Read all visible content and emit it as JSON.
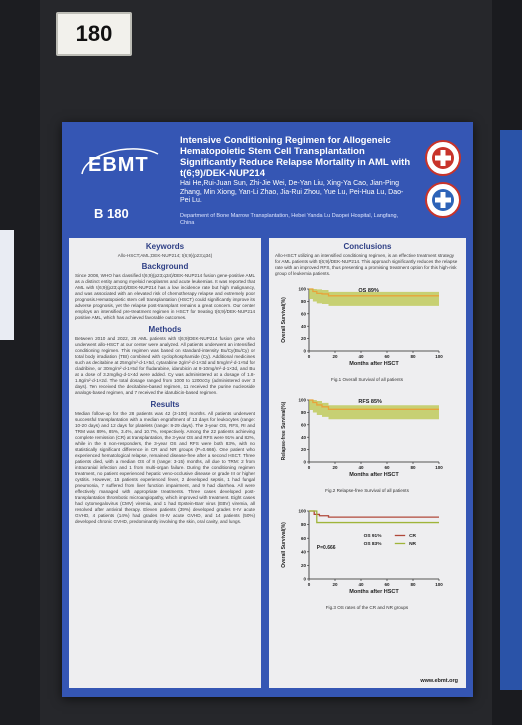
{
  "panel_number": "180",
  "poster": {
    "logo": "EBMT",
    "code": "B 180",
    "title": "Intensive Conditioning Regimen for Allogeneic Hematopoietic Stem Cell Transplantation Significantly Reduce Relapse Mortality in AML with t(6;9)/DEK-NUP214",
    "authors": "Hai He,Rui-Juan Sun, Zhi-Jie Wei, De-Yan Liu, Xing-Ya Cao, Jian-Ping Zhang, Min Xiong, Yan-Li Zhao, Jia-Rui Zhou, Yue Lu, Pei-Hua Lu, Dao-Pei Lu.",
    "affiliation": "Department of Bone Marrow Transplantation, Hebei Yanda Lu Daopei Hospital, Langfang, China",
    "website": "www.ebmt.org"
  },
  "left": {
    "keywords_heading": "Keywords",
    "keywords": "Allo-HSCT;AML;DEK-NUP214; t(6;9)(p23;q34)",
    "background_heading": "Background",
    "background": "Since 2008, WHO has classified t(6;9)(p23;q34)/DEK-NUP214 fusion gene-positive AML as a distinct entity among myeloid neoplasms and acute leukemias. It was reported that AML with t(6;9)(p23;q34)/DEK-NUP214 has a low incidence rate but high malignancy, and was associated with an elevated risk of chemotherapy relapse and extremely poor prognosis.Hematopoietic stem cell transplantation (HSCT) could significantly improve its adverse prognosis, yet the relapse post-transplant remains a great concern. Our center employs an intensified pre-treatment regimen in HSCT for treating t(6;9)/DEK-NUP214 positive AML, which has achieved favorable outcomes.",
    "methods_heading": "Methods",
    "methods": "Between 2010 and 2022, 28 AML patients with t(6;9)DEK-NUP214 fusion gene who underwent allo-HSCT at our center were analyzed. All patients underwent an intensified conditioning regimen. This regimen was based on standard-intensity Bu/Cy(Bu/Cy) or total body irradiation (TBI) combined with cyclophosphamide (Cy). Additional medicines such as decitabine at 25mg/m²·d-1×5d, cytarabine 2g/m²·d-1×3d and 5mg/m²·d-1×5d for cladribine, or 30mg/m²·d-1×5d for fludarabine, idarubicin at 8-10mg/m²·d-1×3d, and Bu at a dose of 3.2mg/kg·d-1×4d were added. Cy was administered at a dosage of 1.8-1.8g/m²·d-1×2d. The total dosage ranged from 1000 to 1200cGy (administered over 3 days). Ten received the decitabine-based regimen, 11 received the purine nucleoside analogs-based regimen, and 7 received the idarubicin-based regimen.",
    "results_heading": "Results",
    "results": "Median follow-up for the 28 patients was 42 (3-100) months. All patients underwent successful transplantation with a median engraftment of 13 days for leukocytes (range: 10-20 days) and 12 days for platelets (range: 8-29 days). The 3-year OS, RFS, RI and TRM was 89%, 85%, 3.4%, and 10.7%, respectively. Among the 22 patients achieving complete remission (CR) at transplantation, the 3-year OS and RFS were 91% and 82%, while in the 6 non-responders, the 3-year OS and RFS were both 83%, with no statistically significant difference in CR and NR groups (P=0.666). One patient who experienced hematological relapse, remained disease-free after a second HSCT. Three patients died, with a median OS of 8 (range: 3-15) months, all due to TRM: 2 from intracranial infection and 1 from multi-organ failure. During the conditioning regimen treatment, no patient experienced hepatic veno-occlusive disease or grade III or higher cystitis. However, 15 patients experienced fever, 2 developed sepsis, 1 had fungal pneumonia, 7 suffered from liver function impairment, and 9 had diarrhea. All were effectively managed with appropriate treatments. Three cases developed post-transplantation thrombotic microangiopathy, which improved with treatment. Eight cases had cytomegalovirus (CMV) viremia, and 1 had Epstein-Barr virus (EBV) viremia, all resolved after antiviral therapy. Eleven patients (39%) developed grades II-IV acute GVHD, 4 patients (14%) had grades III-IV acute GVHD, and 14 patients (50%) developed chronic GVHD, predominantly involving the skin, oral cavity, and lungs."
  },
  "right": {
    "conclusions_heading": "Conclusions",
    "conclusions": "Allo-HSCT utilizing an intensified conditioning regimen, is an effective treatment strategy for AML patients with t(6;9)/DEK-NUP214. This approach significantly reduces the relapse rate with an improved RFS, thus presenting a promising treatment option for this high-risk group of leukemia patients."
  },
  "chart_data": [
    {
      "type": "line",
      "title": "Fig.1 Overall Survival of all patients",
      "xlabel": "Months after HSCT",
      "ylabel": "Overall Survival(%)",
      "annotation": "OS 89%",
      "xlim": [
        0,
        100
      ],
      "ylim": [
        0,
        100
      ],
      "xticks": [
        0,
        20,
        40,
        60,
        80,
        100
      ],
      "yticks": [
        0,
        20,
        40,
        60,
        80,
        100
      ],
      "series": [
        {
          "x": [
            0,
            3,
            6,
            10,
            15,
            100
          ],
          "y": [
            100,
            96,
            93,
            92,
            89,
            89
          ],
          "color": "#e8a33a"
        }
      ]
    },
    {
      "type": "line",
      "title": "Fig.2 Relapse-free Survival of all patients",
      "xlabel": "Months after HSCT",
      "ylabel": "Relapse-free Survival(%)",
      "annotation": "RFS 85%",
      "xlim": [
        0,
        100
      ],
      "ylim": [
        0,
        100
      ],
      "xticks": [
        0,
        20,
        40,
        60,
        80,
        100
      ],
      "yticks": [
        0,
        20,
        40,
        60,
        80,
        100
      ],
      "series": [
        {
          "x": [
            0,
            3,
            6,
            10,
            15,
            100
          ],
          "y": [
            100,
            96,
            92,
            89,
            85,
            85
          ],
          "color": "#e8a33a"
        }
      ]
    },
    {
      "type": "line",
      "title": "Fig.3 OS rates of the CR and NR groups",
      "xlabel": "Months after HSCT",
      "ylabel": "Overall Survival(%)",
      "annotation": "P=0.666",
      "xlim": [
        0,
        100
      ],
      "ylim": [
        0,
        100
      ],
      "xticks": [
        0,
        20,
        40,
        60,
        80,
        100
      ],
      "yticks": [
        0,
        20,
        40,
        60,
        80,
        100
      ],
      "series": [
        {
          "name": "CR",
          "label": "OS 91%",
          "x": [
            0,
            4,
            8,
            15,
            100
          ],
          "y": [
            100,
            95,
            93,
            91,
            91
          ],
          "color": "#b0483a"
        },
        {
          "name": "NR",
          "label": "OS 83%",
          "x": [
            0,
            6,
            100
          ],
          "y": [
            100,
            83,
            83
          ],
          "color": "#9fb43a"
        }
      ]
    }
  ]
}
